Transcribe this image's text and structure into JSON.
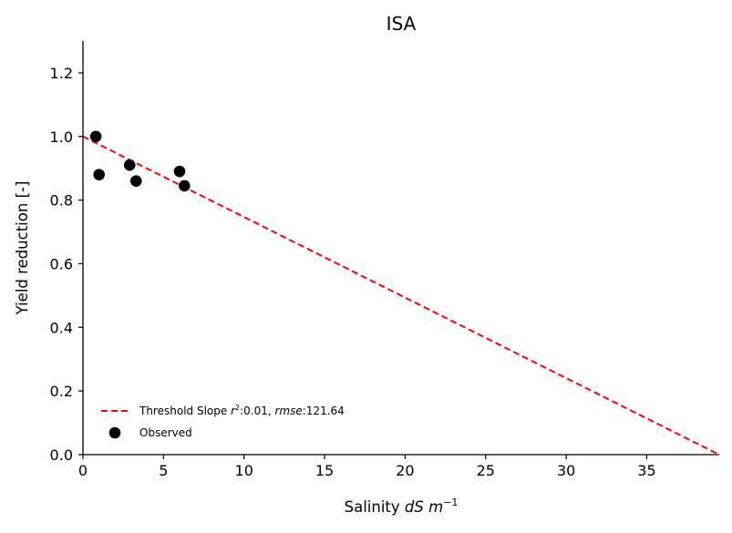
{
  "chart_data": {
    "type": "scatter",
    "title": "ISA",
    "xlabel": {
      "prefix": "Salinity ",
      "italic": "dS m",
      "superscript": "−1"
    },
    "ylabel": "Yield reduction [-]",
    "xlim": [
      0,
      39.5
    ],
    "ylim": [
      0,
      1.3
    ],
    "xticks": [
      0,
      5,
      10,
      15,
      20,
      25,
      30,
      35
    ],
    "yticks": [
      0.0,
      0.2,
      0.4,
      0.6,
      0.8,
      1.0,
      1.2
    ],
    "xtick_labels": [
      "0",
      "5",
      "10",
      "15",
      "20",
      "25",
      "30",
      "35"
    ],
    "ytick_labels": [
      "0.0",
      "0.2",
      "0.4",
      "0.6",
      "0.8",
      "1.0",
      "1.2"
    ],
    "grid": false,
    "legend_position": "lower-left",
    "series": [
      {
        "name": "Threshold Slope",
        "type": "line",
        "style": "dashed",
        "color": "#ff0000",
        "x": [
          0,
          39.5
        ],
        "y": [
          1.0,
          0.0
        ]
      },
      {
        "name": "Observed",
        "type": "scatter",
        "color": "#000000",
        "x": [
          0.8,
          1.0,
          2.9,
          3.3,
          6.0,
          6.3
        ],
        "y": [
          1.0,
          0.88,
          0.91,
          0.86,
          0.89,
          0.845
        ]
      }
    ],
    "legend": [
      {
        "series": "Threshold Slope",
        "text": "Threshold Slope ",
        "r2_label": "r",
        "r2_sup": "2",
        "r2_value": ":0.01, ",
        "rmse_label": "rmse",
        "rmse_value": ":121.64"
      },
      {
        "series": "Observed",
        "text": "Observed"
      }
    ]
  }
}
